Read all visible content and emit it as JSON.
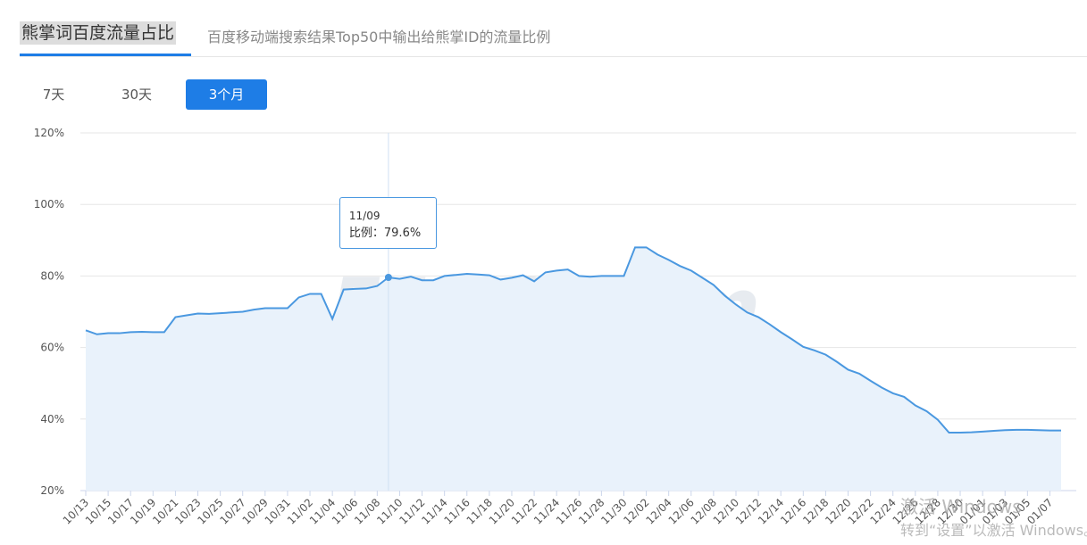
{
  "header": {
    "title": "熊掌词百度流量占比",
    "subtitle": "百度移动端搜索结果Top50中输出给熊掌ID的流量比例"
  },
  "tabs": [
    "7天",
    "30天",
    "3个月"
  ],
  "watermark": "5118.com",
  "os_notice": {
    "title": "激活 Windows",
    "text": "转到“设置”以激活 Windows。"
  },
  "chart_data": {
    "type": "area",
    "color": "#4a98e0",
    "fill": "#e9f2fb",
    "grid": true,
    "categories": [
      "10/13",
      "10/14",
      "10/15",
      "10/16",
      "10/17",
      "10/18",
      "10/19",
      "10/20",
      "10/21",
      "10/22",
      "10/23",
      "10/24",
      "10/25",
      "10/26",
      "10/27",
      "10/28",
      "10/29",
      "10/30",
      "10/31",
      "11/01",
      "11/02",
      "11/03",
      "11/04",
      "11/05",
      "11/06",
      "11/07",
      "11/08",
      "11/09",
      "11/10",
      "11/11",
      "11/12",
      "11/13",
      "11/14",
      "11/15",
      "11/16",
      "11/17",
      "11/18",
      "11/19",
      "11/20",
      "11/21",
      "11/22",
      "11/23",
      "11/24",
      "11/25",
      "11/26",
      "11/27",
      "11/28",
      "11/29",
      "11/30",
      "12/01",
      "12/02",
      "12/03",
      "12/04",
      "12/05",
      "12/06",
      "12/07",
      "12/08",
      "12/09",
      "12/10",
      "12/11",
      "12/12",
      "12/13",
      "12/14",
      "12/15",
      "12/16",
      "12/17",
      "12/18",
      "12/19",
      "12/20",
      "12/21",
      "12/22",
      "12/23",
      "12/24",
      "12/25",
      "12/26",
      "12/27",
      "12/28",
      "12/29",
      "12/30",
      "12/31",
      "01/01",
      "01/02",
      "01/03",
      "01/04",
      "01/05",
      "01/06",
      "01/07",
      "01/08"
    ],
    "values": [
      64.8,
      63.7,
      64.0,
      64.0,
      64.3,
      64.4,
      64.3,
      64.3,
      68.5,
      69.0,
      69.5,
      69.4,
      69.6,
      69.8,
      70.0,
      70.6,
      71.0,
      71.0,
      71.0,
      74.0,
      75.0,
      75.0,
      68.0,
      76.2,
      76.4,
      76.5,
      77.2,
      79.6,
      79.2,
      79.8,
      78.8,
      78.8,
      80.0,
      80.3,
      80.6,
      80.4,
      80.2,
      79.0,
      79.5,
      80.2,
      78.5,
      81.0,
      81.5,
      81.8,
      80.0,
      79.8,
      80.0,
      80.0,
      80.0,
      88.0,
      88.0,
      86.0,
      84.5,
      82.8,
      81.5,
      79.5,
      77.5,
      74.5,
      72.0,
      69.8,
      68.5,
      66.5,
      64.3,
      62.3,
      60.2,
      59.2,
      58.0,
      56.0,
      53.8,
      52.7,
      50.7,
      48.8,
      47.2,
      46.2,
      43.8,
      42.2,
      39.8,
      36.2,
      36.2,
      36.3,
      36.5,
      36.7,
      36.9,
      37.0,
      37.0,
      36.9,
      36.8,
      36.8
    ],
    "ylim": [
      20,
      120
    ],
    "yticks": [
      {
        "value": 20,
        "label": "20%"
      },
      {
        "value": 40,
        "label": "40%"
      },
      {
        "value": 60,
        "label": "60%"
      },
      {
        "value": 80,
        "label": "80%"
      },
      {
        "value": 100,
        "label": "100%"
      },
      {
        "value": 120,
        "label": "120%"
      }
    ],
    "tooltip": {
      "title": "11/09",
      "text": "比例：79.6%"
    }
  }
}
